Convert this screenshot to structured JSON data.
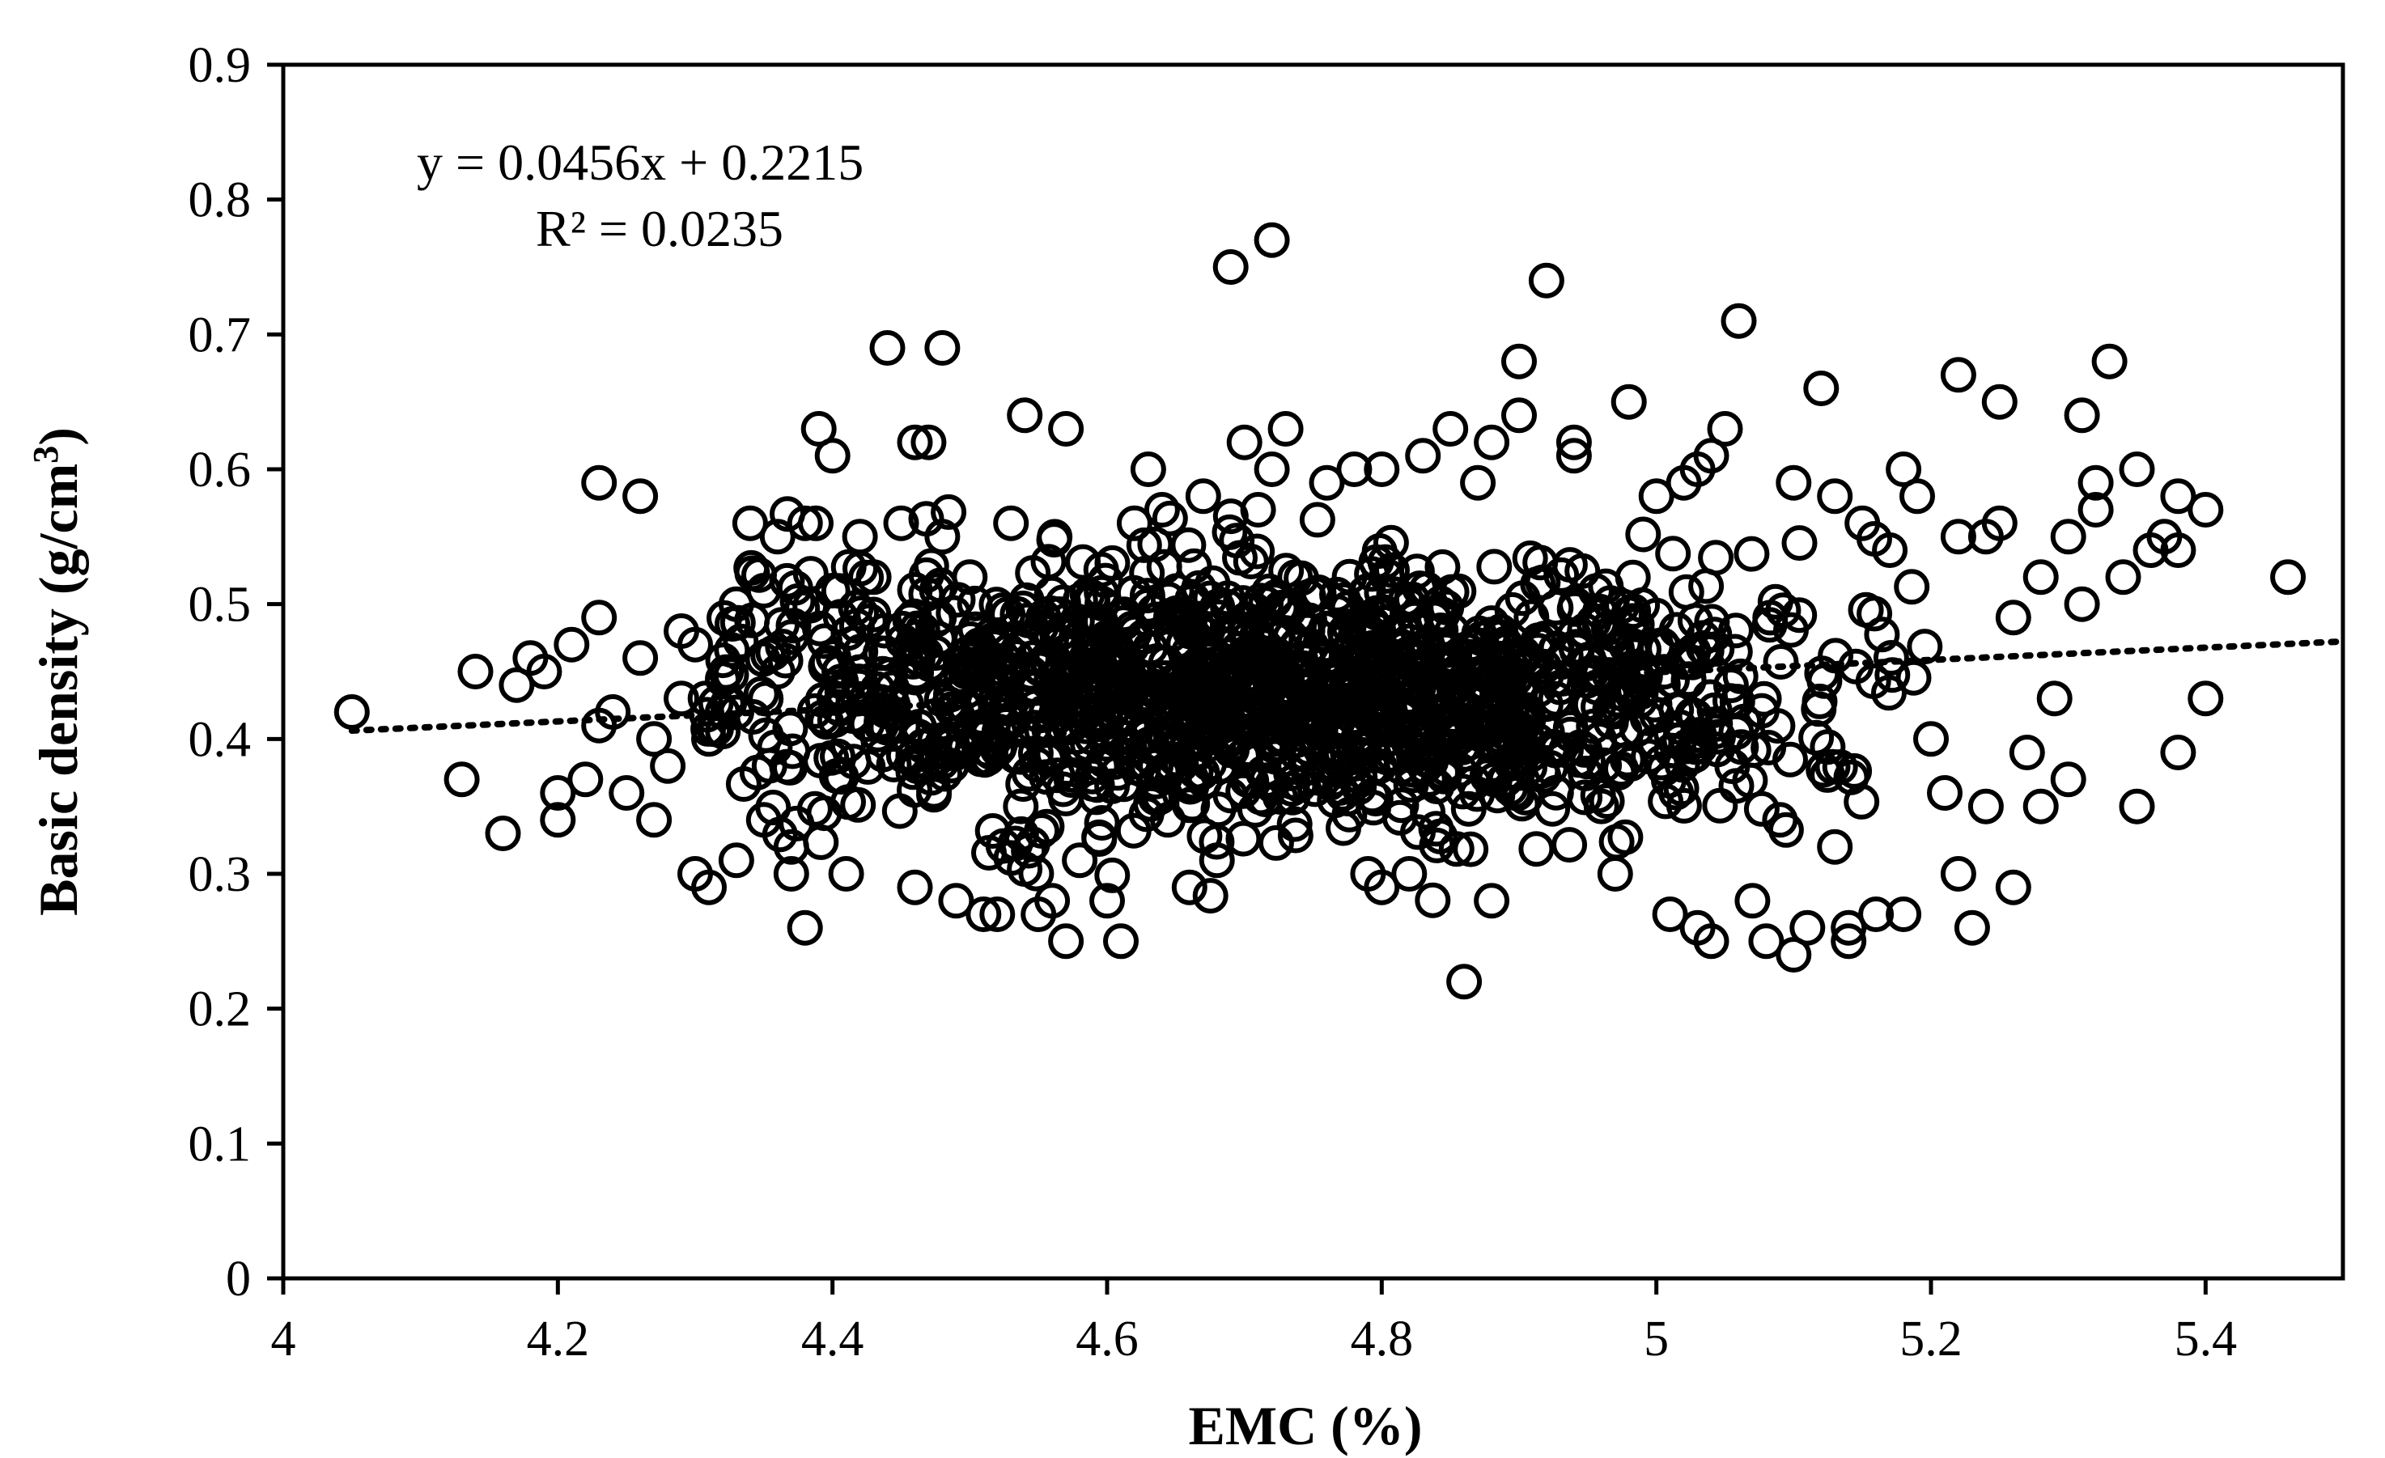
{
  "chart_data": {
    "type": "scatter",
    "title": "",
    "xlabel": "EMC (%)",
    "ylabel_main": "Basic density (g/cm",
    "ylabel_sup": "3",
    "ylabel_close": ")",
    "xlim": [
      4,
      5.5
    ],
    "ylim": [
      0,
      0.9
    ],
    "x_ticks": [
      "4",
      "4.2",
      "4.4",
      "4.6",
      "4.8",
      "5",
      "5.2",
      "5.4"
    ],
    "y_ticks": [
      "0",
      "0.1",
      "0.2",
      "0.3",
      "0.4",
      "0.5",
      "0.6",
      "0.7",
      "0.8",
      "0.9"
    ],
    "grid": false,
    "trendline": {
      "slope": 0.0456,
      "intercept": 0.2215,
      "x_range": [
        4.05,
        5.5
      ],
      "style": "dotted"
    },
    "equation_text": "y = 0.0456x + 0.2215",
    "r2_text": "R² = 0.0235",
    "marker": "open-circle",
    "points": [
      [
        4.05,
        0.42
      ],
      [
        4.13,
        0.37
      ],
      [
        4.14,
        0.45
      ],
      [
        4.16,
        0.33
      ],
      [
        4.17,
        0.44
      ],
      [
        4.18,
        0.46
      ],
      [
        4.19,
        0.45
      ],
      [
        4.2,
        0.34
      ],
      [
        4.2,
        0.36
      ],
      [
        4.21,
        0.47
      ],
      [
        4.22,
        0.37
      ],
      [
        4.23,
        0.59
      ],
      [
        4.23,
        0.49
      ],
      [
        4.23,
        0.41
      ],
      [
        4.24,
        0.42
      ],
      [
        4.25,
        0.36
      ],
      [
        4.26,
        0.58
      ],
      [
        4.26,
        0.46
      ],
      [
        4.27,
        0.34
      ],
      [
        4.27,
        0.4
      ],
      [
        4.28,
        0.38
      ],
      [
        4.29,
        0.48
      ],
      [
        4.29,
        0.43
      ],
      [
        4.3,
        0.3
      ],
      [
        4.3,
        0.47
      ],
      [
        4.31,
        0.29
      ],
      [
        4.31,
        0.4
      ],
      [
        4.32,
        0.42
      ],
      [
        4.33,
        0.31
      ],
      [
        4.33,
        0.5
      ],
      [
        4.34,
        0.56
      ],
      [
        4.35,
        0.51
      ],
      [
        4.35,
        0.34
      ],
      [
        4.36,
        0.55
      ],
      [
        4.36,
        0.45
      ],
      [
        4.37,
        0.3
      ],
      [
        4.37,
        0.32
      ],
      [
        4.38,
        0.56
      ],
      [
        4.38,
        0.26
      ],
      [
        4.39,
        0.63
      ],
      [
        4.4,
        0.61
      ],
      [
        4.4,
        0.51
      ],
      [
        4.41,
        0.3
      ],
      [
        4.42,
        0.55
      ],
      [
        4.43,
        0.52
      ],
      [
        4.44,
        0.69
      ],
      [
        4.45,
        0.56
      ],
      [
        4.46,
        0.29
      ],
      [
        4.46,
        0.62
      ],
      [
        4.47,
        0.62
      ],
      [
        4.48,
        0.55
      ],
      [
        4.48,
        0.69
      ],
      [
        4.49,
        0.28
      ],
      [
        4.5,
        0.52
      ],
      [
        4.51,
        0.27
      ],
      [
        4.52,
        0.27
      ],
      [
        4.53,
        0.56
      ],
      [
        4.54,
        0.64
      ],
      [
        4.55,
        0.27
      ],
      [
        4.56,
        0.28
      ],
      [
        4.57,
        0.25
      ],
      [
        4.57,
        0.63
      ],
      [
        4.58,
        0.31
      ],
      [
        4.6,
        0.28
      ],
      [
        4.61,
        0.25
      ],
      [
        4.62,
        0.56
      ],
      [
        4.63,
        0.6
      ],
      [
        4.64,
        0.57
      ],
      [
        4.66,
        0.29
      ],
      [
        4.67,
        0.58
      ],
      [
        4.68,
        0.31
      ],
      [
        4.69,
        0.75
      ],
      [
        4.7,
        0.62
      ],
      [
        4.71,
        0.57
      ],
      [
        4.72,
        0.6
      ],
      [
        4.72,
        0.77
      ],
      [
        4.73,
        0.63
      ],
      [
        4.76,
        0.59
      ],
      [
        4.78,
        0.6
      ],
      [
        4.79,
        0.3
      ],
      [
        4.8,
        0.29
      ],
      [
        4.8,
        0.6
      ],
      [
        4.82,
        0.3
      ],
      [
        4.83,
        0.61
      ],
      [
        4.85,
        0.63
      ],
      [
        4.86,
        0.22
      ],
      [
        4.87,
        0.59
      ],
      [
        4.88,
        0.62
      ],
      [
        4.88,
        0.28
      ],
      [
        4.9,
        0.64
      ],
      [
        4.9,
        0.68
      ],
      [
        4.92,
        0.74
      ],
      [
        4.94,
        0.62
      ],
      [
        4.94,
        0.61
      ],
      [
        4.97,
        0.3
      ],
      [
        4.98,
        0.65
      ],
      [
        5,
        0.58
      ],
      [
        5.01,
        0.27
      ],
      [
        5.02,
        0.59
      ],
      [
        5.03,
        0.26
      ],
      [
        5.03,
        0.6
      ],
      [
        5.04,
        0.61
      ],
      [
        5.04,
        0.25
      ],
      [
        5.05,
        0.63
      ],
      [
        5.06,
        0.71
      ],
      [
        5.07,
        0.28
      ],
      [
        5.08,
        0.25
      ],
      [
        5.09,
        0.34
      ],
      [
        5.1,
        0.24
      ],
      [
        5.1,
        0.59
      ],
      [
        5.11,
        0.26
      ],
      [
        5.12,
        0.66
      ],
      [
        5.13,
        0.58
      ],
      [
        5.13,
        0.32
      ],
      [
        5.14,
        0.26
      ],
      [
        5.14,
        0.25
      ],
      [
        5.15,
        0.56
      ],
      [
        5.16,
        0.27
      ],
      [
        5.17,
        0.54
      ],
      [
        5.18,
        0.6
      ],
      [
        5.18,
        0.27
      ],
      [
        5.19,
        0.58
      ],
      [
        5.2,
        0.4
      ],
      [
        5.21,
        0.36
      ],
      [
        5.22,
        0.67
      ],
      [
        5.22,
        0.55
      ],
      [
        5.22,
        0.3
      ],
      [
        5.23,
        0.26
      ],
      [
        5.24,
        0.55
      ],
      [
        5.24,
        0.35
      ],
      [
        5.25,
        0.65
      ],
      [
        5.25,
        0.56
      ],
      [
        5.26,
        0.29
      ],
      [
        5.26,
        0.49
      ],
      [
        5.27,
        0.39
      ],
      [
        5.28,
        0.35
      ],
      [
        5.28,
        0.52
      ],
      [
        5.29,
        0.43
      ],
      [
        5.3,
        0.55
      ],
      [
        5.3,
        0.37
      ],
      [
        5.31,
        0.64
      ],
      [
        5.31,
        0.5
      ],
      [
        5.32,
        0.59
      ],
      [
        5.32,
        0.57
      ],
      [
        5.33,
        0.68
      ],
      [
        5.34,
        0.52
      ],
      [
        5.35,
        0.6
      ],
      [
        5.35,
        0.35
      ],
      [
        5.36,
        0.54
      ],
      [
        5.37,
        0.55
      ],
      [
        5.38,
        0.39
      ],
      [
        5.38,
        0.58
      ],
      [
        5.38,
        0.54
      ],
      [
        5.4,
        0.57
      ],
      [
        5.4,
        0.43
      ],
      [
        5.46,
        0.52
      ]
    ],
    "cloud_summary": {
      "count": 1400,
      "x_center": 4.72,
      "x_sd": 0.2,
      "x_min": 4.3,
      "x_max": 5.2,
      "y_center": 0.435,
      "y_sd": 0.05
    }
  }
}
